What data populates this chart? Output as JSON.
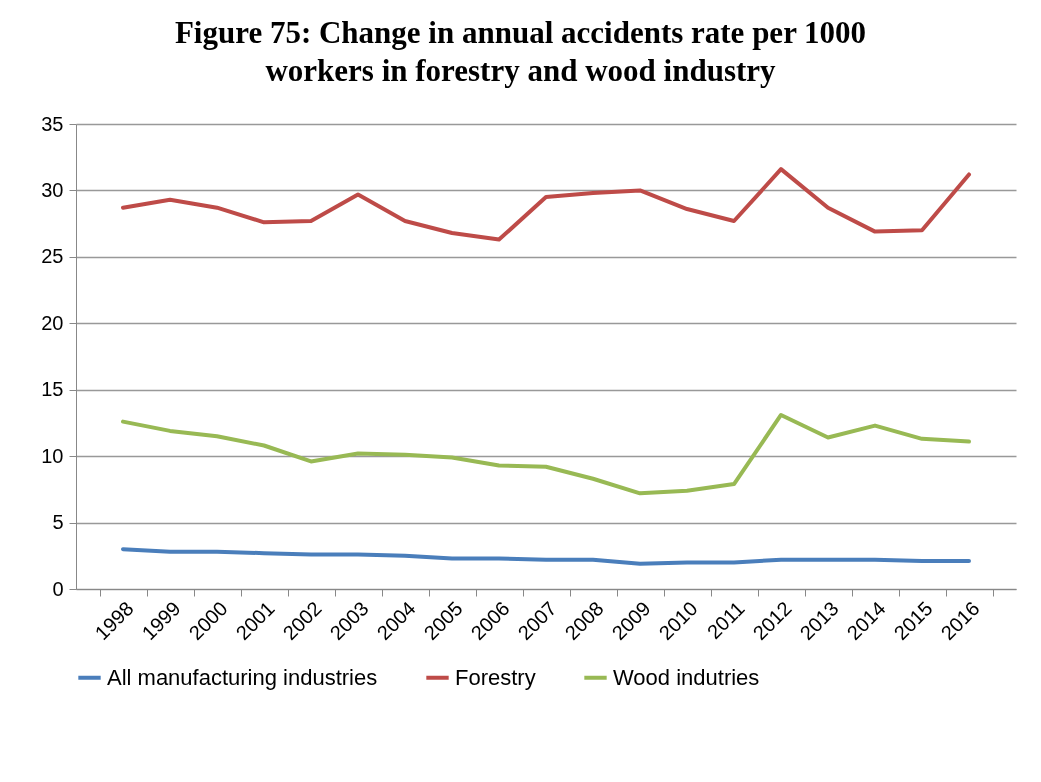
{
  "chart_data": {
    "type": "line",
    "title": "Figure 75: Change in annual accidents rate per 1000 workers in forestry and wood industry",
    "categories": [
      "1998",
      "1999",
      "2000",
      "2001",
      "2002",
      "2003",
      "2004",
      "2005",
      "2006",
      "2007",
      "2008",
      "2009",
      "2010",
      "2011",
      "2012",
      "2013",
      "2014",
      "2015",
      "2016"
    ],
    "series": [
      {
        "name": "All manufacturing industries",
        "color": "#4a7ebb",
        "values": [
          3.0,
          2.8,
          2.8,
          2.7,
          2.6,
          2.6,
          2.5,
          2.3,
          2.3,
          2.2,
          2.2,
          1.9,
          2.0,
          2.0,
          2.2,
          2.2,
          2.2,
          2.1,
          2.1
        ]
      },
      {
        "name": "Forestry",
        "color": "#be4b48",
        "values": [
          28.7,
          29.3,
          28.7,
          27.6,
          27.7,
          29.7,
          27.7,
          26.8,
          26.3,
          29.5,
          29.8,
          30.0,
          28.6,
          27.7,
          31.6,
          28.7,
          26.9,
          27.0,
          31.2
        ]
      },
      {
        "name": "Wood indutries",
        "color": "#98b954",
        "values": [
          12.6,
          11.9,
          11.5,
          10.8,
          9.6,
          10.2,
          10.1,
          9.9,
          9.3,
          9.2,
          8.3,
          7.2,
          7.4,
          7.9,
          13.1,
          11.4,
          12.3,
          11.3,
          11.1
        ]
      }
    ],
    "ylim": [
      0,
      35
    ],
    "yticks": [
      0,
      5,
      10,
      15,
      20,
      25,
      30,
      35
    ],
    "grid": "y",
    "legend": "bottom",
    "marker": "none",
    "line_style": "solid"
  }
}
